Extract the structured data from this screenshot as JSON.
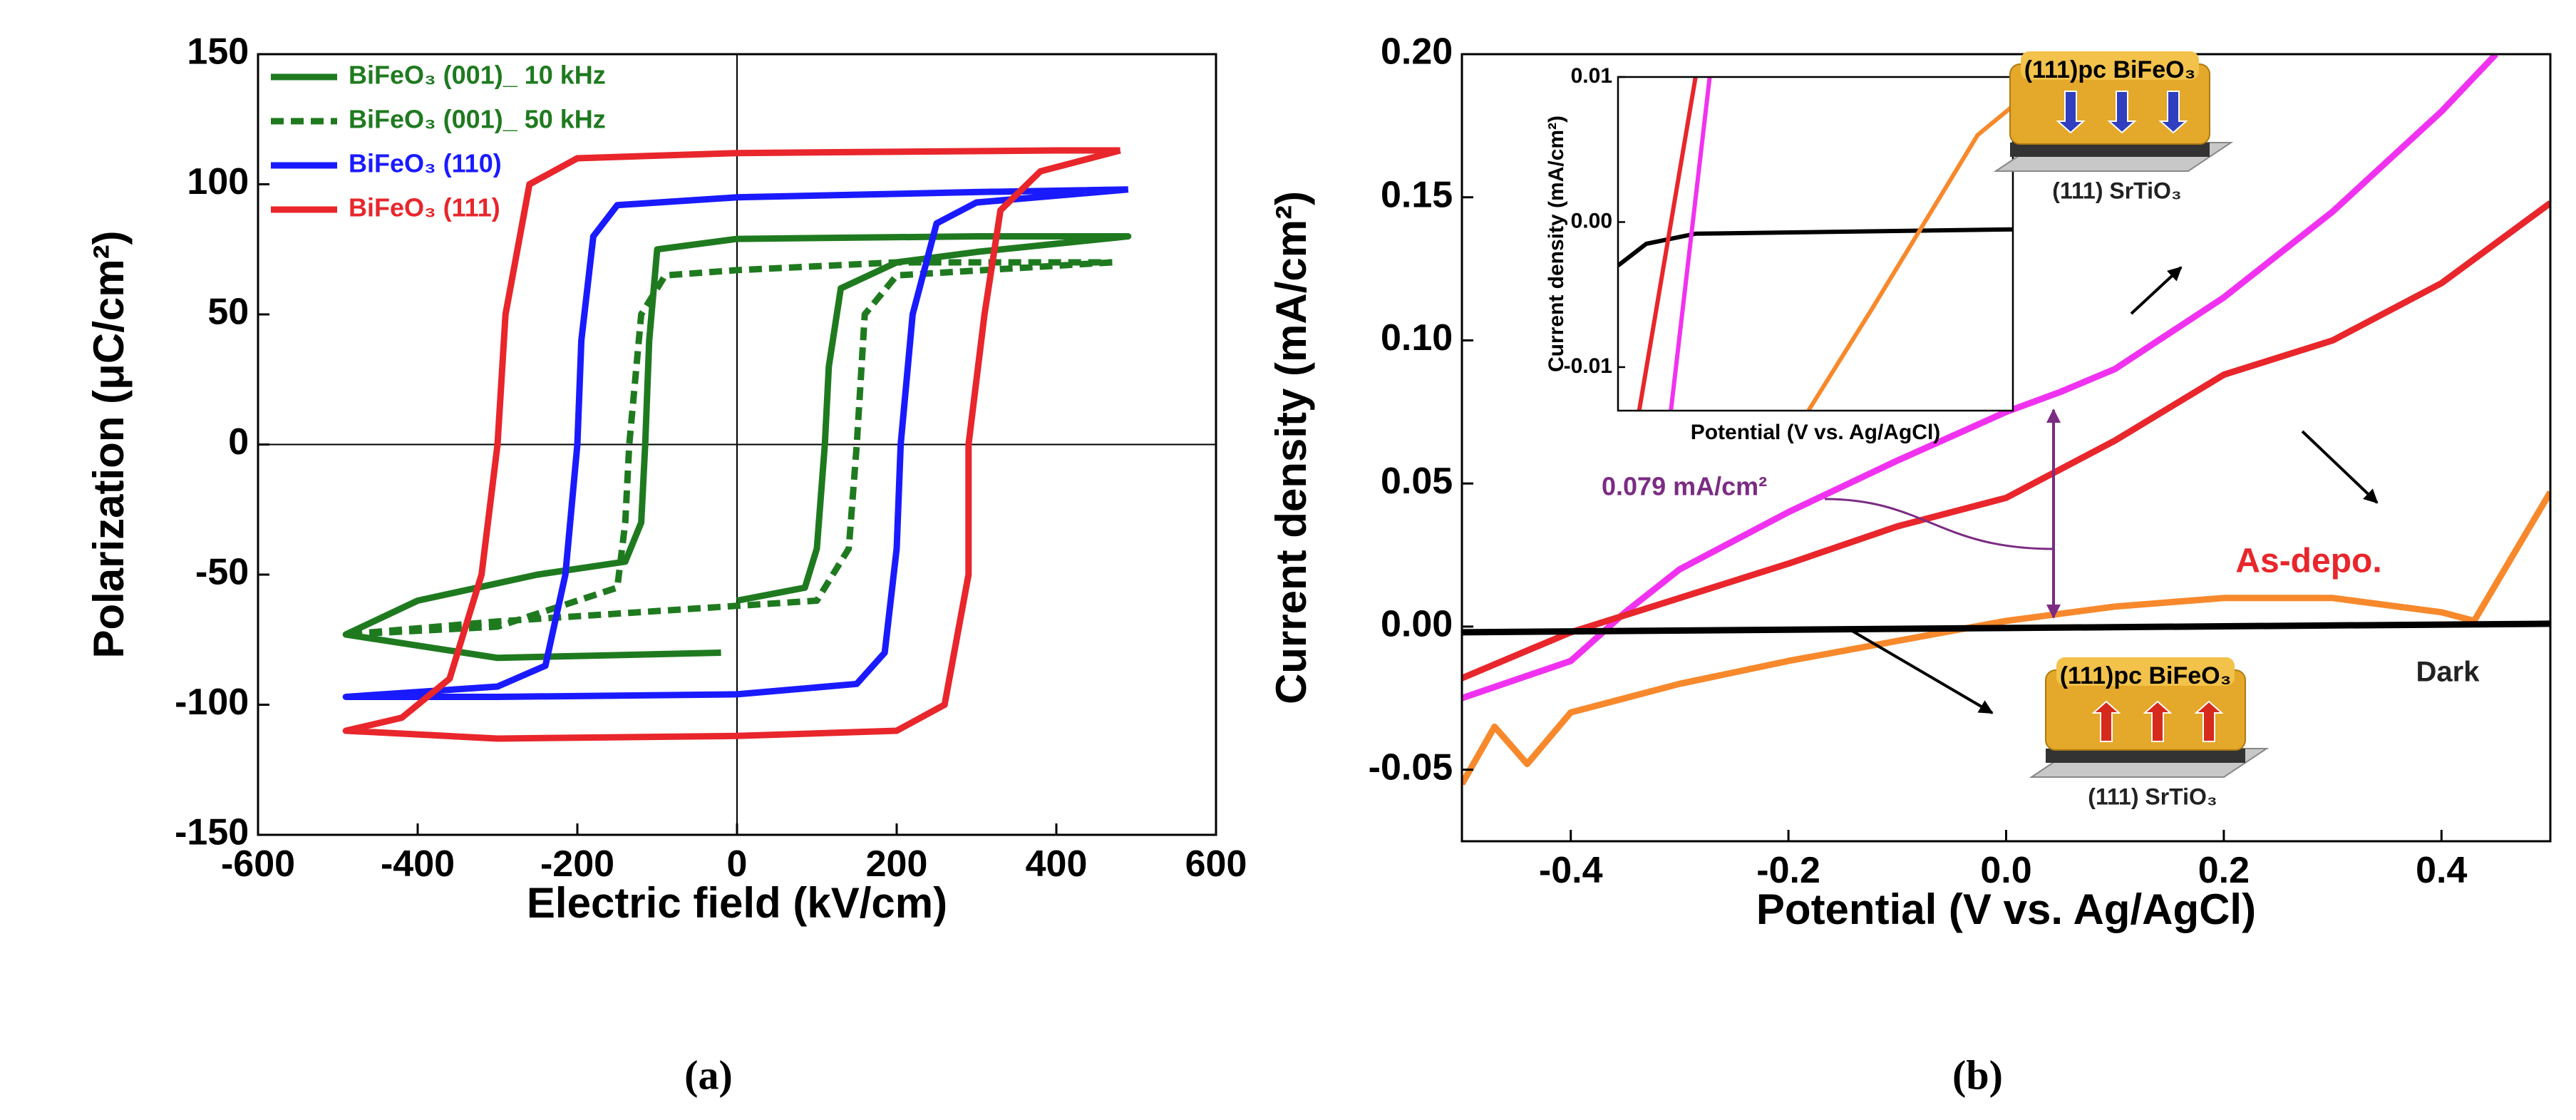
{
  "chart_data": [
    {
      "type": "line",
      "caption": "(a)",
      "x_label": "Electric field (kV/cm)",
      "y_label": "Polarization (μC/cm²)",
      "xlim": [
        -600,
        600
      ],
      "xticks": [
        -600,
        -400,
        -200,
        0,
        200,
        400,
        600
      ],
      "ylim": [
        -150,
        150
      ],
      "yticks": [
        -150,
        -100,
        -50,
        0,
        50,
        100,
        150
      ],
      "zero_lines": true,
      "grid": false,
      "legend": "upper left",
      "series": [
        {
          "name": "BiFeO₃ (001)_ 10 kHz",
          "color": "#1f7a1f",
          "dashed": false,
          "x": [
            -20,
            -300,
            -490,
            -400,
            -250,
            -140,
            -120,
            -115,
            -110,
            -100,
            0,
            300,
            490,
            300,
            200,
            130,
            115,
            110,
            100,
            85,
            0
          ],
          "values": [
            -80,
            -82,
            -73,
            -60,
            -50,
            -45,
            -30,
            0,
            40,
            75,
            79,
            80,
            80,
            74,
            70,
            60,
            30,
            0,
            -40,
            -55,
            -60
          ]
        },
        {
          "name": "BiFeO₃ (001)_ 50 kHz",
          "color": "#1f7a1f",
          "dashed": true,
          "x": [
            470,
            200,
            160,
            150,
            140,
            100,
            0,
            -300,
            -490,
            -300,
            -150,
            -140,
            -135,
            -120,
            -90,
            0,
            200,
            470
          ],
          "values": [
            70,
            65,
            50,
            0,
            -40,
            -60,
            -62,
            -68,
            -73,
            -70,
            -55,
            -30,
            0,
            50,
            65,
            67,
            70,
            70
          ]
        },
        {
          "name": "BiFeO₃ (110)",
          "color": "#1a1aff",
          "dashed": false,
          "x": [
            490,
            300,
            0,
            -150,
            -180,
            -195,
            -200,
            -215,
            -240,
            -300,
            -490,
            -300,
            0,
            150,
            185,
            200,
            205,
            220,
            250,
            300,
            490
          ],
          "values": [
            98,
            97,
            95,
            92,
            80,
            40,
            0,
            -50,
            -85,
            -93,
            -97,
            -97,
            -96,
            -92,
            -80,
            -40,
            0,
            50,
            85,
            93,
            98
          ]
        },
        {
          "name": "BiFeO₃ (111)",
          "color": "#e8262b",
          "dashed": false,
          "x": [
            480,
            400,
            0,
            -200,
            -260,
            -290,
            -300,
            -320,
            -360,
            -420,
            -490,
            -300,
            0,
            200,
            260,
            290,
            290,
            310,
            330,
            380,
            480
          ],
          "values": [
            113,
            113,
            112,
            110,
            100,
            50,
            0,
            -50,
            -90,
            -105,
            -110,
            -113,
            -112,
            -110,
            -100,
            -50,
            0,
            50,
            90,
            105,
            113
          ]
        }
      ]
    },
    {
      "type": "line",
      "caption": "(b)",
      "x_label": "Potential (V vs. Ag/AgCl)",
      "y_label": "Current density (mA/cm²)",
      "xlim": [
        -0.5,
        0.5
      ],
      "xticks": [
        -0.4,
        -0.2,
        {
          "value": 0,
          "label": "0.0"
        },
        0.2,
        0.4
      ],
      "ylim": [
        -0.075,
        0.2
      ],
      "yticks": [
        {
          "value": -0.05,
          "label": "-0.05"
        },
        {
          "value": 0,
          "label": "0.00"
        },
        {
          "value": 0.05,
          "label": "0.05"
        },
        {
          "value": 0.1,
          "label": "0.10"
        },
        {
          "value": 0.15,
          "label": "0.15"
        },
        {
          "value": 0.2,
          "label": "0.20"
        }
      ],
      "grid": false,
      "annotations": [
        "0.079 mA/cm²",
        "(111)pc BiFeO₃",
        "(111) SrTiO₃",
        "(111)pc BiFeO₃",
        "(111) SrTiO₃"
      ],
      "series": [
        {
          "color": "#f032f0",
          "x": [
            -0.5,
            -0.4,
            -0.35,
            -0.3,
            -0.2,
            -0.1,
            0,
            0.05,
            0.1,
            0.2,
            0.3,
            0.4,
            0.45
          ],
          "values": [
            -0.025,
            -0.012,
            0.005,
            0.02,
            0.04,
            0.058,
            0.075,
            0.082,
            0.09,
            0.115,
            0.145,
            0.18,
            0.2
          ]
        },
        {
          "name": "As-depo.",
          "color": "#e8262b",
          "x": [
            -0.5,
            -0.4,
            -0.3,
            -0.2,
            -0.1,
            0,
            0.1,
            0.2,
            0.3,
            0.4,
            0.5
          ],
          "values": [
            -0.018,
            -0.002,
            0.01,
            0.022,
            0.035,
            0.045,
            0.065,
            0.088,
            0.1,
            0.12,
            0.148
          ]
        },
        {
          "color": "#f7892c",
          "x": [
            -0.5,
            -0.47,
            -0.44,
            -0.4,
            -0.3,
            -0.2,
            -0.1,
            0,
            0.1,
            0.2,
            0.3,
            0.4,
            0.43,
            0.5
          ],
          "values": [
            -0.055,
            -0.035,
            -0.048,
            -0.03,
            -0.02,
            -0.012,
            -0.005,
            0.002,
            0.007,
            0.01,
            0.01,
            0.005,
            0.002,
            0.047
          ]
        },
        {
          "name": "Dark",
          "color": "#000000",
          "x": [
            -0.5,
            0,
            0.5
          ],
          "values": [
            -0.002,
            -0.0005,
            0.001
          ]
        }
      ]
    },
    {
      "type": "line",
      "x_label": "Potential (V vs. Ag/AgCl)",
      "y_label": "Current density (mA/cm²)",
      "xlim": [
        -0.46,
        0.1
      ],
      "ylim": [
        -0.013,
        0.01
      ],
      "yticks": [
        {
          "value": -0.01,
          "label": "-0.01"
        },
        {
          "value": 0,
          "label": "0.00"
        },
        0.01
      ],
      "series": [
        {
          "color": "#000000",
          "x": [
            -0.46,
            -0.42,
            -0.35,
            0.1
          ],
          "values": [
            -0.003,
            -0.0015,
            -0.0008,
            -0.0005
          ]
        },
        {
          "color": "#e8262b",
          "x": [
            -0.43,
            -0.35
          ],
          "values": [
            -0.013,
            0.01
          ]
        },
        {
          "color": "#f032f0",
          "x": [
            -0.385,
            -0.33
          ],
          "values": [
            -0.013,
            0.01
          ]
        },
        {
          "color": "#f7892c",
          "x": [
            -0.19,
            -0.1,
            0,
            0.05,
            0.1
          ],
          "values": [
            -0.013,
            -0.006,
            0.002,
            0.006,
            0.008
          ]
        }
      ]
    }
  ]
}
